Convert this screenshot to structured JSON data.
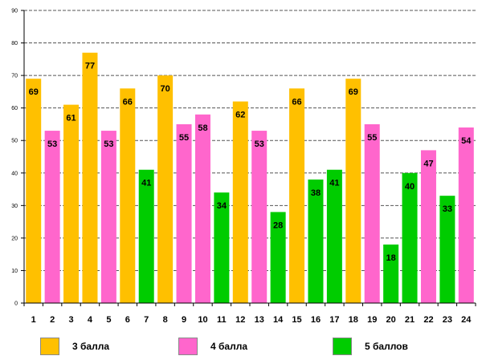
{
  "chart_data": {
    "type": "bar",
    "title": "",
    "xlabel": "",
    "ylabel": "",
    "ylim": [
      0,
      90
    ],
    "yticks": [
      0,
      10,
      20,
      30,
      40,
      50,
      60,
      70,
      80,
      90
    ],
    "grid": true,
    "categories": [
      "1",
      "2",
      "3",
      "4",
      "5",
      "6",
      "7",
      "8",
      "9",
      "10",
      "11",
      "12",
      "13",
      "14",
      "15",
      "16",
      "17",
      "18",
      "19",
      "20",
      "21",
      "22",
      "23",
      "24"
    ],
    "values": [
      69,
      53,
      61,
      77,
      53,
      66,
      41,
      70,
      55,
      58,
      34,
      62,
      53,
      28,
      66,
      38,
      41,
      69,
      55,
      18,
      40,
      47,
      33,
      54
    ],
    "grades": [
      "3 балла",
      "4 балла",
      "3 балла",
      "3 балла",
      "4 балла",
      "3 балла",
      "5 баллов",
      "3 балла",
      "4 балла",
      "4 балла",
      "5 баллов",
      "3 балла",
      "4 балла",
      "5 баллов",
      "3 балла",
      "5 баллов",
      "5 баллов",
      "3 балла",
      "4 балла",
      "5 баллов",
      "5 баллов",
      "4 балла",
      "5 баллов",
      "4 балла"
    ],
    "legend": [
      {
        "name": "3 балла",
        "color": "#ffc000"
      },
      {
        "name": "4 балла",
        "color": "#ff66cc"
      },
      {
        "name": "5 баллов",
        "color": "#00cc00"
      }
    ],
    "legend_position": "bottom"
  }
}
